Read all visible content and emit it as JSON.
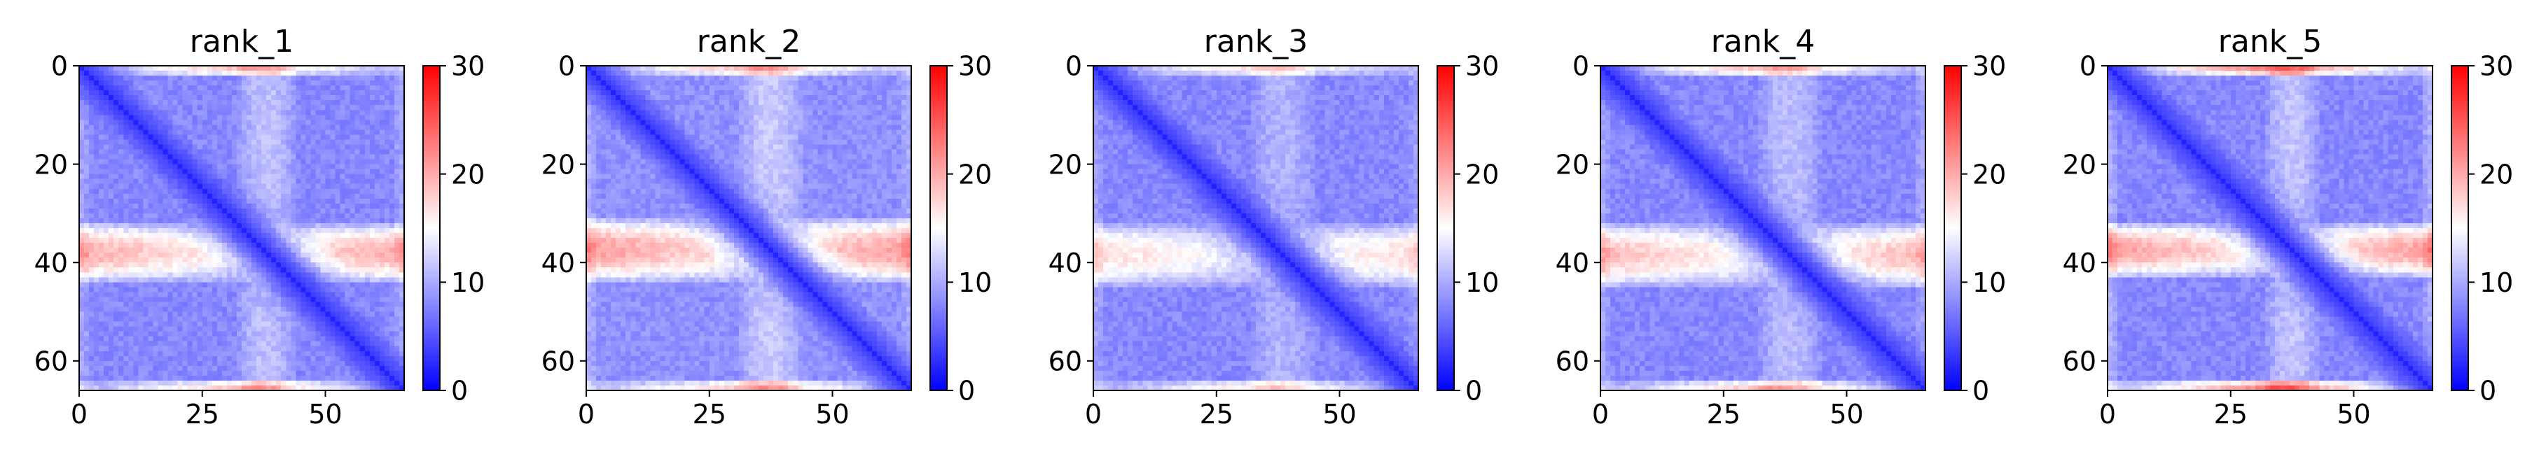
{
  "chart_data": [
    {
      "type": "heatmap",
      "title": "rank_1",
      "matrix_size": 66,
      "xlim": [
        0,
        66
      ],
      "ylim": [
        66,
        0
      ],
      "x_ticks": [
        0,
        25,
        50
      ],
      "y_ticks": [
        0,
        20,
        40,
        60
      ],
      "colorbar": {
        "min": 0,
        "max": 30,
        "ticks": [
          0,
          10,
          20,
          30
        ],
        "colors": [
          "#0000ff",
          "#ffffff",
          "#ff0000"
        ]
      },
      "grid": false,
      "pattern": {
        "background": 8,
        "band_rows": [
          32,
          43
        ],
        "band_peak": 21,
        "edge_rows": [
          0,
          1,
          64,
          65
        ],
        "edge_peak": 19,
        "diagonal": 3
      }
    },
    {
      "type": "heatmap",
      "title": "rank_2",
      "matrix_size": 66,
      "xlim": [
        0,
        66
      ],
      "ylim": [
        66,
        0
      ],
      "x_ticks": [
        0,
        25,
        50
      ],
      "y_ticks": [
        0,
        20,
        40,
        60
      ],
      "colorbar": {
        "min": 0,
        "max": 30,
        "ticks": [
          0,
          10,
          20,
          30
        ],
        "colors": [
          "#0000ff",
          "#ffffff",
          "#ff0000"
        ]
      },
      "grid": false,
      "pattern": {
        "background": 8.5,
        "band_rows": [
          31,
          43
        ],
        "band_peak": 22,
        "edge_rows": [
          0,
          1,
          64,
          65
        ],
        "edge_peak": 19,
        "diagonal": 3
      }
    },
    {
      "type": "heatmap",
      "title": "rank_3",
      "matrix_size": 66,
      "xlim": [
        0,
        66
      ],
      "ylim": [
        66,
        0
      ],
      "x_ticks": [
        0,
        25,
        50
      ],
      "y_ticks": [
        0,
        20,
        40,
        60
      ],
      "colorbar": {
        "min": 0,
        "max": 30,
        "ticks": [
          0,
          10,
          20,
          30
        ],
        "colors": [
          "#0000ff",
          "#ffffff",
          "#ff0000"
        ]
      },
      "grid": false,
      "pattern": {
        "background": 8,
        "band_rows": [
          32,
          44
        ],
        "band_peak": 18,
        "edge_rows": [
          0,
          1,
          64,
          65
        ],
        "edge_peak": 17,
        "diagonal": 3
      }
    },
    {
      "type": "heatmap",
      "title": "rank_4",
      "matrix_size": 66,
      "xlim": [
        0,
        66
      ],
      "ylim": [
        66,
        0
      ],
      "x_ticks": [
        0,
        25,
        50
      ],
      "y_ticks": [
        0,
        20,
        40,
        60
      ],
      "colorbar": {
        "min": 0,
        "max": 30,
        "ticks": [
          0,
          10,
          20,
          30
        ],
        "colors": [
          "#0000ff",
          "#ffffff",
          "#ff0000"
        ]
      },
      "grid": false,
      "pattern": {
        "background": 8,
        "band_rows": [
          32,
          44
        ],
        "band_peak": 20,
        "edge_rows": [
          0,
          1,
          64,
          65
        ],
        "edge_peak": 19,
        "diagonal": 3
      }
    },
    {
      "type": "heatmap",
      "title": "rank_5",
      "matrix_size": 66,
      "xlim": [
        0,
        66
      ],
      "ylim": [
        66,
        0
      ],
      "x_ticks": [
        0,
        25,
        50
      ],
      "y_ticks": [
        0,
        20,
        40,
        60
      ],
      "colorbar": {
        "min": 0,
        "max": 30,
        "ticks": [
          0,
          10,
          20,
          30
        ],
        "colors": [
          "#0000ff",
          "#ffffff",
          "#ff0000"
        ]
      },
      "grid": false,
      "pattern": {
        "background": 8,
        "band_rows": [
          32,
          42
        ],
        "band_peak": 22,
        "edge_rows": [
          0,
          1,
          64,
          65
        ],
        "edge_peak": 23,
        "diagonal": 3
      }
    }
  ]
}
